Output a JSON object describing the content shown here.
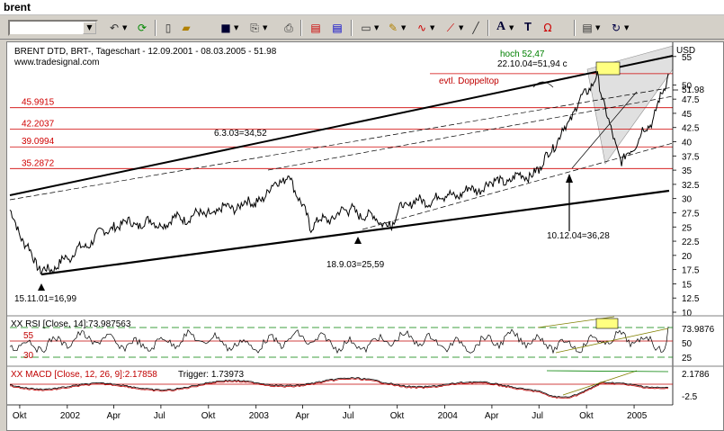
{
  "window": {
    "title": "brent"
  },
  "toolbar": {
    "symbol_value": "",
    "icons": [
      "undo-icon",
      "refresh-icon",
      "new-doc-icon",
      "open-icon",
      "save-icon",
      "copy-icon",
      "print-icon",
      "chart-icon",
      "chart2-icon",
      "window-icon",
      "tools-icon",
      "studies-icon",
      "drawing-icon",
      "text-icon",
      "magnet-icon",
      "page-icon",
      "redo-icon"
    ]
  },
  "main_panel": {
    "header": "BRENT  DTD, BRT-, Tageschart - 12.09.2001 - 08.03.2005 - 51.98",
    "source": "www.tradesignal.com",
    "axis_unit": "USD",
    "price_ticks": [
      "55",
      "50",
      "47.5",
      "45",
      "42.5",
      "40",
      "37.5",
      "35",
      "32.5",
      "30",
      "27.5",
      "25",
      "22.5",
      "20",
      "17.5",
      "15",
      "12.5",
      "10"
    ],
    "last_price_label": "51.98",
    "levels": [
      "45.9915",
      "42.2037",
      "39.0994",
      "35.2872"
    ],
    "annotations": {
      "hoch": "hoch 52,47",
      "hoch_date": "22.10.04=51,94 c",
      "doppeltop": "evtl. Doppeltop",
      "mar03": "6.3.03=34,52",
      "sep03": "18.9.03=25,59",
      "nov01": "15.11.01=16,99",
      "dec04": "10.12.04=36,28"
    }
  },
  "rsi_panel": {
    "header": "XX RSI [Close, 14]:73.987563",
    "levels": [
      "55",
      "30"
    ],
    "last_label": "73.9876",
    "ticks": [
      "50",
      "25"
    ]
  },
  "macd_panel": {
    "header": "XX MACD [Close, 12, 26, 9]:2.17858",
    "trigger": "Trigger: 1.73973",
    "last_label": "2.1786",
    "ticks": [
      "-2.5"
    ]
  },
  "time_axis": [
    "Okt",
    "2002",
    "Apr",
    "Jul",
    "Okt",
    "2003",
    "Apr",
    "Jul",
    "Okt",
    "2004",
    "Apr",
    "Jul",
    "Okt",
    "2005"
  ],
  "colors": {
    "levels": "#d00000",
    "price": "#000000",
    "annotation_red": "#c00000",
    "annotation_green": "#008000",
    "target_box": "#ffff80",
    "channel": "#d8d8d8"
  },
  "chart_data": {
    "type": "line",
    "title": "BRENT  DTD, BRT-, Tageschart - 12.09.2001 - 08.03.2005 - 51.98",
    "ylabel": "USD",
    "ylim": [
      10,
      57.5
    ],
    "x": [
      "2001-09-12",
      "2001-10-15",
      "2001-11-15",
      "2002-01-02",
      "2002-04-01",
      "2002-07-01",
      "2002-10-01",
      "2003-01-02",
      "2003-03-06",
      "2003-04-15",
      "2003-07-01",
      "2003-09-18",
      "2003-10-15",
      "2004-01-02",
      "2004-04-01",
      "2004-07-01",
      "2004-08-15",
      "2004-10-22",
      "2004-11-15",
      "2004-12-10",
      "2005-01-15",
      "2005-02-10",
      "2005-03-08"
    ],
    "series": [
      {
        "name": "BRENT",
        "values": [
          27.5,
          21.5,
          16.99,
          19.5,
          25.5,
          25.8,
          27.5,
          29.5,
          34.52,
          25.2,
          28.0,
          25.59,
          29.0,
          30.2,
          32.5,
          34.8,
          42.0,
          51.94,
          42.5,
          36.28,
          41.5,
          44.5,
          51.98
        ]
      }
    ]
  }
}
